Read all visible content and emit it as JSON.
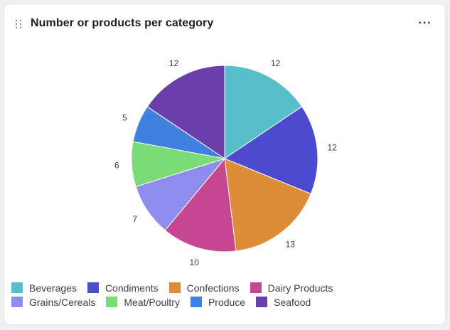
{
  "header": {
    "title": "Number or products per category",
    "menu_label": "···"
  },
  "chart_data": {
    "type": "pie",
    "title": "Number or products per category",
    "categories": [
      "Beverages",
      "Condiments",
      "Confections",
      "Dairy Products",
      "Grains/Cereals",
      "Meat/Poultry",
      "Produce",
      "Seafood"
    ],
    "values": [
      12,
      12,
      13,
      10,
      7,
      6,
      5,
      12
    ],
    "colors": [
      "#56bfc9",
      "#4c4acf",
      "#dd8c37",
      "#c84691",
      "#8f8cf0",
      "#79dc76",
      "#3f81e0",
      "#6a3fab"
    ],
    "legend_position": "bottom-left",
    "start_angle": "top",
    "direction": "clockwise"
  }
}
